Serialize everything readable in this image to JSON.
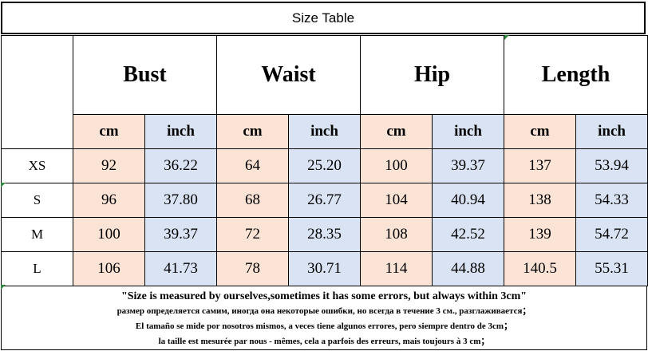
{
  "title": "Size Table",
  "measures": [
    "Bust",
    "Waist",
    "Hip",
    "Length"
  ],
  "units": {
    "cm": "cm",
    "inch": "inch"
  },
  "rows": [
    {
      "size": "XS",
      "values": [
        "92",
        "36.22",
        "64",
        "25.20",
        "100",
        "39.37",
        "137",
        "53.94"
      ]
    },
    {
      "size": "S",
      "values": [
        "96",
        "37.80",
        "68",
        "26.77",
        "104",
        "40.94",
        "138",
        "54.33"
      ]
    },
    {
      "size": "M",
      "values": [
        "100",
        "39.37",
        "72",
        "28.35",
        "108",
        "42.52",
        "139",
        "54.72"
      ]
    },
    {
      "size": "L",
      "values": [
        "106",
        "41.73",
        "78",
        "30.71",
        "114",
        "44.88",
        "140.5",
        "55.31"
      ]
    }
  ],
  "notes": [
    "\"Size is measured by ourselves,sometimes it has some errors, but always within 3cm\"",
    "размер определяется самим, иногда она некоторые ошибки, но всегда в течение 3 см., разглаживается；",
    "El tamaño se mide por nosotros mismos, a veces tiene algunos errores, pero siempre dentro de 3cm；",
    "la taille est mesurée par nous - mêmes, cela a parfois des erreurs, mais toujours à 3 cm；"
  ],
  "colors": {
    "cm_cell": "#fbe3d6",
    "inch_cell": "#dae3f3",
    "border": "#000000"
  }
}
